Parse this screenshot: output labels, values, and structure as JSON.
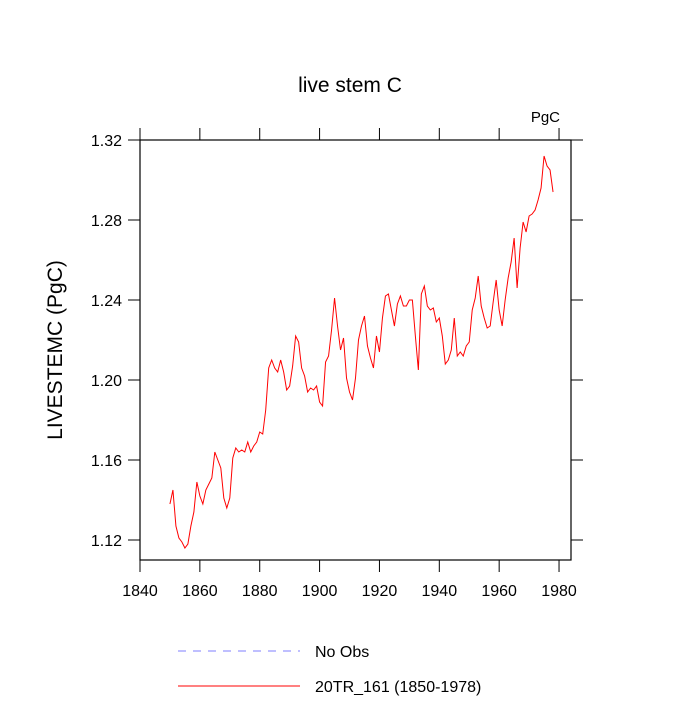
{
  "chart_data": {
    "type": "line",
    "title": "live stem C",
    "units": "PgC",
    "ylabel": "LIVESTEMC  (PgC)",
    "x": [
      1850,
      1851,
      1852,
      1853,
      1854,
      1855,
      1856,
      1857,
      1858,
      1859,
      1860,
      1861,
      1862,
      1863,
      1864,
      1865,
      1866,
      1867,
      1868,
      1869,
      1870,
      1871,
      1872,
      1873,
      1874,
      1875,
      1876,
      1877,
      1878,
      1879,
      1880,
      1881,
      1882,
      1883,
      1884,
      1885,
      1886,
      1887,
      1888,
      1889,
      1890,
      1891,
      1892,
      1893,
      1894,
      1895,
      1896,
      1897,
      1898,
      1899,
      1900,
      1901,
      1902,
      1903,
      1904,
      1905,
      1906,
      1907,
      1908,
      1909,
      1910,
      1911,
      1912,
      1913,
      1914,
      1915,
      1916,
      1917,
      1918,
      1919,
      1920,
      1921,
      1922,
      1923,
      1924,
      1925,
      1926,
      1927,
      1928,
      1929,
      1930,
      1931,
      1932,
      1933,
      1934,
      1935,
      1936,
      1937,
      1938,
      1939,
      1940,
      1941,
      1942,
      1943,
      1944,
      1945,
      1946,
      1947,
      1948,
      1949,
      1950,
      1951,
      1952,
      1953,
      1954,
      1955,
      1956,
      1957,
      1958,
      1959,
      1960,
      1961,
      1962,
      1963,
      1964,
      1965,
      1966,
      1967,
      1968,
      1969,
      1970,
      1971,
      1972,
      1973,
      1974,
      1975,
      1976,
      1977,
      1978
    ],
    "series": [
      {
        "name": "No Obs",
        "color": "#7f7fff",
        "dashed": true
      },
      {
        "name": "20TR_161 (1850-1978)",
        "color": "#ff0000",
        "dashed": false,
        "values": [
          1.138,
          1.145,
          1.127,
          1.121,
          1.119,
          1.116,
          1.118,
          1.127,
          1.134,
          1.149,
          1.142,
          1.138,
          1.145,
          1.148,
          1.151,
          1.164,
          1.16,
          1.156,
          1.141,
          1.136,
          1.141,
          1.161,
          1.166,
          1.164,
          1.165,
          1.164,
          1.169,
          1.164,
          1.167,
          1.169,
          1.174,
          1.173,
          1.185,
          1.206,
          1.21,
          1.206,
          1.204,
          1.21,
          1.204,
          1.195,
          1.197,
          1.207,
          1.222,
          1.219,
          1.206,
          1.202,
          1.194,
          1.196,
          1.195,
          1.197,
          1.189,
          1.187,
          1.209,
          1.212,
          1.225,
          1.241,
          1.227,
          1.215,
          1.221,
          1.201,
          1.194,
          1.19,
          1.201,
          1.22,
          1.227,
          1.232,
          1.217,
          1.211,
          1.206,
          1.222,
          1.214,
          1.231,
          1.242,
          1.243,
          1.235,
          1.227,
          1.238,
          1.242,
          1.237,
          1.237,
          1.24,
          1.24,
          1.222,
          1.205,
          1.243,
          1.247,
          1.237,
          1.235,
          1.236,
          1.229,
          1.231,
          1.222,
          1.208,
          1.21,
          1.215,
          1.231,
          1.212,
          1.214,
          1.212,
          1.217,
          1.219,
          1.235,
          1.241,
          1.252,
          1.237,
          1.231,
          1.226,
          1.227,
          1.239,
          1.25,
          1.235,
          1.227,
          1.24,
          1.251,
          1.259,
          1.271,
          1.246,
          1.266,
          1.279,
          1.274,
          1.282,
          1.283,
          1.285,
          1.29,
          1.296,
          1.312,
          1.307,
          1.305,
          1.294
        ]
      }
    ],
    "xlim": [
      1840,
      1984
    ],
    "xticks": [
      1840,
      1860,
      1880,
      1900,
      1920,
      1940,
      1960,
      1980
    ],
    "ylim": [
      1.11,
      1.32
    ],
    "yticks": [
      1.12,
      1.16,
      {
        "value": 1.2,
        "label": "1.20"
      },
      1.24,
      1.28,
      1.32
    ]
  }
}
